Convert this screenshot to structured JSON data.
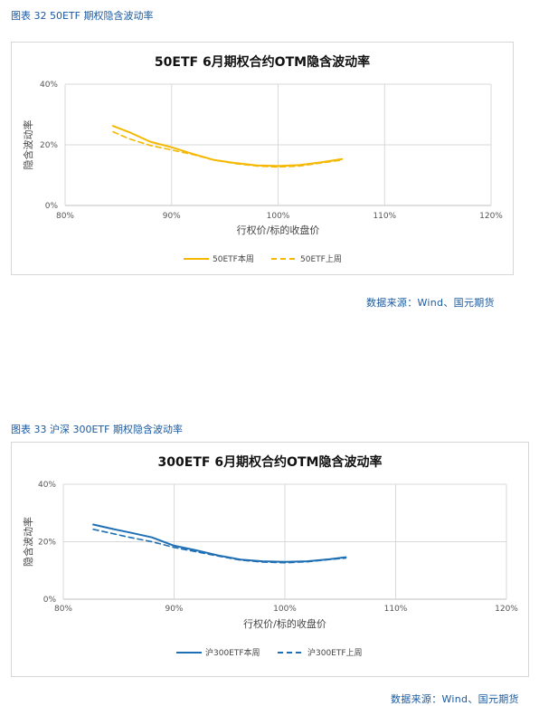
{
  "figures": [
    {
      "caption": "图表 32  50ETF 期权隐含波动率",
      "source": "数据来源：Wind、国元期货",
      "chart_data": {
        "type": "line",
        "title": "50ETF 6月期权合约OTM隐含波动率",
        "xlabel": "行权价/标的收盘价",
        "ylabel": "隐含波动率",
        "x_ticks": [
          "80%",
          "90%",
          "100%",
          "110%",
          "120%"
        ],
        "y_ticks": [
          "0%",
          "20%",
          "40%"
        ],
        "xlim": [
          80,
          120
        ],
        "ylim": [
          0,
          40
        ],
        "grid": true,
        "legend_position": "bottom",
        "series": [
          {
            "name": "50ETF本周",
            "style": "solid",
            "color": "#f5b800",
            "x": [
              84.5,
              86,
              88,
              90,
              92,
              94,
              96,
              98,
              100,
              102,
              104,
              106
            ],
            "y": [
              26.2,
              24.2,
              21.0,
              19.2,
              17.0,
              15.0,
              14.0,
              13.2,
              13.0,
              13.3,
              14.2,
              15.3
            ]
          },
          {
            "name": "50ETF上周",
            "style": "dashed",
            "color": "#f5b800",
            "x": [
              84.5,
              86,
              88,
              90,
              92,
              94,
              96,
              98,
              100,
              102,
              104,
              106
            ],
            "y": [
              24.3,
              22.0,
              19.8,
              18.3,
              16.8,
              15.0,
              13.8,
              13.0,
              12.7,
              13.0,
              14.0,
              15.0
            ]
          }
        ]
      }
    },
    {
      "caption": "图表 33  沪深 300ETF 期权隐含波动率",
      "source": "数据来源：Wind、国元期货",
      "chart_data": {
        "type": "line",
        "title": "300ETF 6月期权合约OTM隐含波动率",
        "xlabel": "行权价/标的收盘价",
        "ylabel": "隐含波动率",
        "x_ticks": [
          "80%",
          "90%",
          "100%",
          "110%",
          "120%"
        ],
        "y_ticks": [
          "0%",
          "20%",
          "40%"
        ],
        "xlim": [
          80,
          120
        ],
        "ylim": [
          0,
          40
        ],
        "grid": true,
        "legend_position": "bottom",
        "series": [
          {
            "name": "沪300ETF本周",
            "style": "solid",
            "color": "#1f6fb4",
            "x": [
              82.7,
              84.5,
              86,
              88,
              90,
              92,
              94,
              96,
              98,
              100,
              102,
              104,
              105.5
            ],
            "y": [
              26.0,
              24.4,
              23.2,
              21.5,
              18.6,
              17.0,
              15.2,
              13.8,
              13.2,
              13.0,
              13.2,
              13.9,
              14.6
            ]
          },
          {
            "name": "沪300ETF上周",
            "style": "dashed",
            "color": "#1f6fb4",
            "x": [
              82.7,
              84.5,
              86,
              88,
              90,
              92,
              94,
              96,
              98,
              100,
              102,
              104,
              105.5
            ],
            "y": [
              24.3,
              22.8,
              21.5,
              20.0,
              18.0,
              16.5,
              15.0,
              13.6,
              12.9,
              12.7,
              13.0,
              13.8,
              14.3
            ]
          }
        ]
      }
    }
  ]
}
